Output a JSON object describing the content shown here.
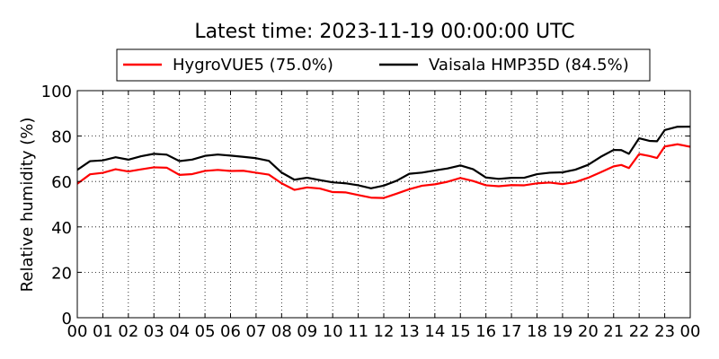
{
  "chart_data": {
    "type": "line",
    "title": "Latest time: 2023-11-19 00:00:00 UTC",
    "xlabel": "",
    "ylabel": "Relative humidity (%)",
    "xlim": [
      0,
      24
    ],
    "ylim": [
      0,
      100
    ],
    "grid": true,
    "legend_position": "top-center",
    "x_tick_labels": [
      "00",
      "01",
      "02",
      "03",
      "04",
      "05",
      "06",
      "07",
      "08",
      "09",
      "10",
      "11",
      "12",
      "13",
      "14",
      "15",
      "16",
      "17",
      "18",
      "19",
      "20",
      "21",
      "22",
      "23",
      "00"
    ],
    "y_tick_labels": [
      "0",
      "20",
      "40",
      "60",
      "80",
      "100"
    ],
    "y_ticks": [
      0,
      20,
      40,
      60,
      80,
      100
    ],
    "x": [
      0,
      0.5,
      1,
      1.5,
      2,
      2.5,
      3,
      3.5,
      4,
      4.5,
      5,
      5.5,
      6,
      6.5,
      7,
      7.5,
      8,
      8.5,
      9,
      9.5,
      10,
      10.5,
      11,
      11.5,
      12,
      12.5,
      13,
      13.5,
      14,
      14.5,
      15,
      15.5,
      16,
      16.5,
      17,
      17.5,
      18,
      18.5,
      19,
      19.5,
      20,
      20.5,
      21,
      21.3,
      21.6,
      22,
      22.4,
      22.7,
      23,
      23.5,
      24
    ],
    "series": [
      {
        "name": "HygroVUE5 (75.0%)",
        "color": "#ff0000",
        "values": [
          59,
          63,
          63.5,
          65,
          64,
          65,
          66,
          66,
          63,
          63.5,
          65,
          65.5,
          65,
          65,
          64,
          63,
          59,
          56,
          57,
          56.5,
          55,
          55,
          54,
          53,
          53,
          55,
          57,
          58.5,
          59,
          60,
          61.5,
          60,
          58,
          57.5,
          58,
          58,
          59,
          59.5,
          59,
          60,
          62,
          64.5,
          67,
          67.5,
          66,
          72,
          71,
          70,
          75,
          76,
          75
        ]
      },
      {
        "name": "Vaisala HMP35D (84.5%)",
        "color": "#000000",
        "values": [
          65,
          69,
          69.5,
          71,
          70,
          71.5,
          72.5,
          72,
          69,
          69.5,
          71,
          71.5,
          71,
          70.5,
          70,
          69,
          64,
          61,
          62,
          61,
          60,
          59.5,
          58.5,
          57,
          58,
          60,
          63,
          63.5,
          64.5,
          65.5,
          67,
          65.5,
          62,
          61.5,
          62,
          62,
          63.5,
          64,
          64,
          65,
          67,
          70.5,
          73.5,
          73.5,
          72,
          79,
          78,
          78,
          83,
          84.5,
          84.5
        ]
      }
    ]
  }
}
